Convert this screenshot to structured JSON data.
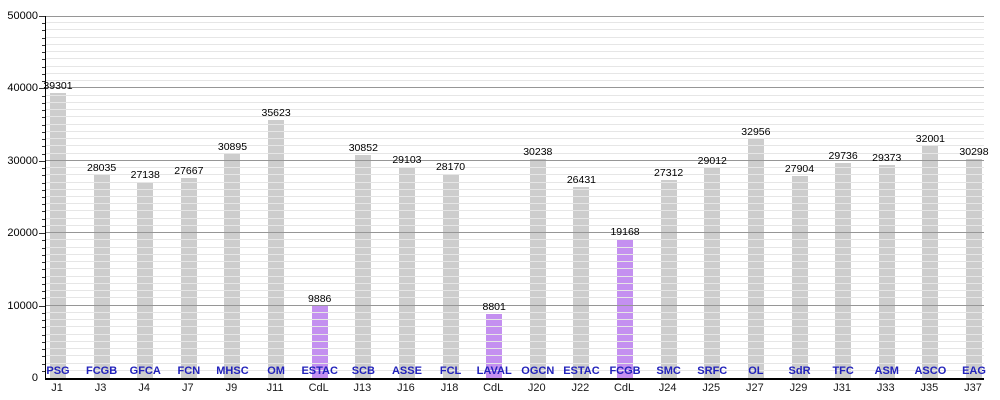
{
  "chart_data": {
    "type": "bar",
    "title": "",
    "xlabel": "",
    "ylabel": "",
    "ylim": [
      0,
      50000
    ],
    "y_tick_labels": [
      "0",
      "10000",
      "20000",
      "30000",
      "40000",
      "50000"
    ],
    "y_major_step": 10000,
    "y_minor_step": 1000,
    "grid": "major and minor horizontal gridlines",
    "legend_position": "none",
    "points": [
      {
        "team": "PSG",
        "matchday": "J1",
        "value": 39301,
        "cup": false
      },
      {
        "team": "FCGB",
        "matchday": "J3",
        "value": 28035,
        "cup": false
      },
      {
        "team": "GFCA",
        "matchday": "J4",
        "value": 27138,
        "cup": false
      },
      {
        "team": "FCN",
        "matchday": "J7",
        "value": 27667,
        "cup": false
      },
      {
        "team": "MHSC",
        "matchday": "J9",
        "value": 30895,
        "cup": false
      },
      {
        "team": "OM",
        "matchday": "J11",
        "value": 35623,
        "cup": false
      },
      {
        "team": "ESTAC",
        "matchday": "CdL",
        "value": 9886,
        "cup": true
      },
      {
        "team": "SCB",
        "matchday": "J13",
        "value": 30852,
        "cup": false
      },
      {
        "team": "ASSE",
        "matchday": "J16",
        "value": 29103,
        "cup": false
      },
      {
        "team": "FCL",
        "matchday": "J18",
        "value": 28170,
        "cup": false
      },
      {
        "team": "LAVAL",
        "matchday": "CdL",
        "value": 8801,
        "cup": true
      },
      {
        "team": "OGCN",
        "matchday": "J20",
        "value": 30238,
        "cup": false
      },
      {
        "team": "ESTAC",
        "matchday": "J22",
        "value": 26431,
        "cup": false
      },
      {
        "team": "FCGB",
        "matchday": "CdL",
        "value": 19168,
        "cup": true
      },
      {
        "team": "SMC",
        "matchday": "J24",
        "value": 27312,
        "cup": false
      },
      {
        "team": "SRFC",
        "matchday": "J25",
        "value": 29012,
        "cup": false
      },
      {
        "team": "OL",
        "matchday": "J27",
        "value": 32956,
        "cup": false
      },
      {
        "team": "SdR",
        "matchday": "J29",
        "value": 27904,
        "cup": false
      },
      {
        "team": "TFC",
        "matchday": "J31",
        "value": 29736,
        "cup": false
      },
      {
        "team": "ASM",
        "matchday": "J33",
        "value": 29373,
        "cup": false
      },
      {
        "team": "ASCO",
        "matchday": "J35",
        "value": 32001,
        "cup": false
      },
      {
        "team": "EAG",
        "matchday": "J37",
        "value": 30298,
        "cup": false
      }
    ],
    "colors": {
      "bar": "#cdcdcd",
      "cup_bar": "#c490f0",
      "team_label": "#2222bb",
      "matchday_label": "#1a1a1a",
      "value_label": "#000000",
      "grid_major": "#969696",
      "grid_minor": "#e6e6e6",
      "axis": "#000000",
      "background": "#ffffff"
    }
  }
}
